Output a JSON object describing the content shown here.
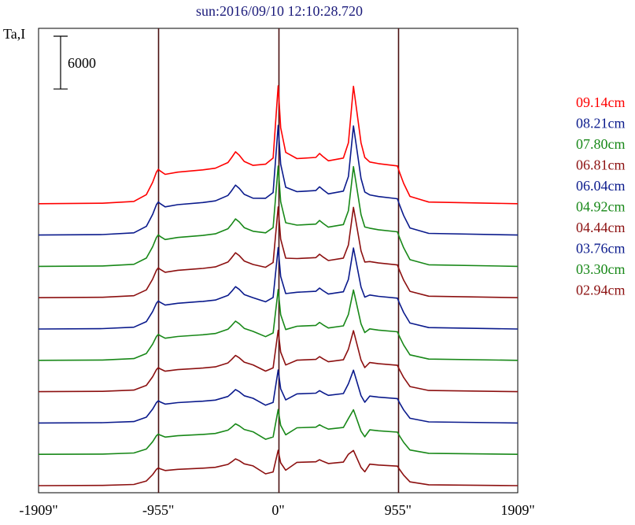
{
  "chart_data": {
    "type": "line",
    "title": "sun:2016/09/10 12:10:28.720",
    "ylabel": "Ta,I",
    "xlabel": "",
    "scale_bar_label": "6000",
    "scale_bar_value": 6000,
    "x_ticks": [
      {
        "value": -1909,
        "label": "-1909\""
      },
      {
        "value": -955,
        "label": "-955\""
      },
      {
        "value": 0,
        "label": "0\""
      },
      {
        "value": 955,
        "label": "955\""
      },
      {
        "value": 1909,
        "label": "1909\""
      }
    ],
    "vertical_lines": [
      -955,
      0,
      955
    ],
    "xlim": [
      -1909,
      1909
    ],
    "grid": false,
    "legend_position": "right",
    "profile_x": [
      -1909,
      -1400,
      -1150,
      -1050,
      -1000,
      -970,
      -955,
      -940,
      -900,
      -800,
      -600,
      -500,
      -400,
      -370,
      -340,
      -310,
      -270,
      -200,
      -100,
      -40,
      0,
      20,
      60,
      150,
      300,
      330,
      360,
      400,
      520,
      560,
      600,
      620,
      660,
      690,
      730,
      800,
      950,
      970,
      1000,
      1050,
      1200,
      1909
    ],
    "series": [
      {
        "name": "09.14cm",
        "color": "#ff0000",
        "base": 0,
        "peak_scale": 1.0,
        "values": [
          0,
          80,
          400,
          1600,
          3800,
          5600,
          6100,
          5800,
          5200,
          5600,
          6000,
          6300,
          7300,
          8200,
          9200,
          8600,
          7500,
          6800,
          7000,
          8100,
          20900,
          13500,
          9100,
          8000,
          8200,
          8900,
          8300,
          7600,
          8100,
          10800,
          20800,
          17500,
          10800,
          8200,
          7400,
          7100,
          6700,
          5400,
          3600,
          1300,
          300,
          0
        ]
      },
      {
        "name": "08.21cm",
        "color": "#0a1a8c",
        "base": 0,
        "peak_scale": 0.93,
        "values": []
      },
      {
        "name": "07.80cm",
        "color": "#188818",
        "base": 0,
        "peak_scale": 0.85,
        "values": []
      },
      {
        "name": "06.81cm",
        "color": "#8c1010",
        "base": 0,
        "peak_scale": 0.77,
        "values": []
      },
      {
        "name": "06.04cm",
        "color": "#0a1a8c",
        "base": 0,
        "peak_scale": 0.69,
        "values": []
      },
      {
        "name": "04.92cm",
        "color": "#188818",
        "base": 0,
        "peak_scale": 0.6,
        "values": []
      },
      {
        "name": "04.44cm",
        "color": "#8c1010",
        "base": 0,
        "peak_scale": 0.52,
        "values": []
      },
      {
        "name": "03.76cm",
        "color": "#0a1a8c",
        "base": 0,
        "peak_scale": 0.45,
        "values": []
      },
      {
        "name": "03.30cm",
        "color": "#188818",
        "base": 0,
        "peak_scale": 0.38,
        "values": []
      },
      {
        "name": "02.94cm",
        "color": "#8c1010",
        "base": 0,
        "peak_scale": 0.3,
        "values": []
      }
    ]
  }
}
